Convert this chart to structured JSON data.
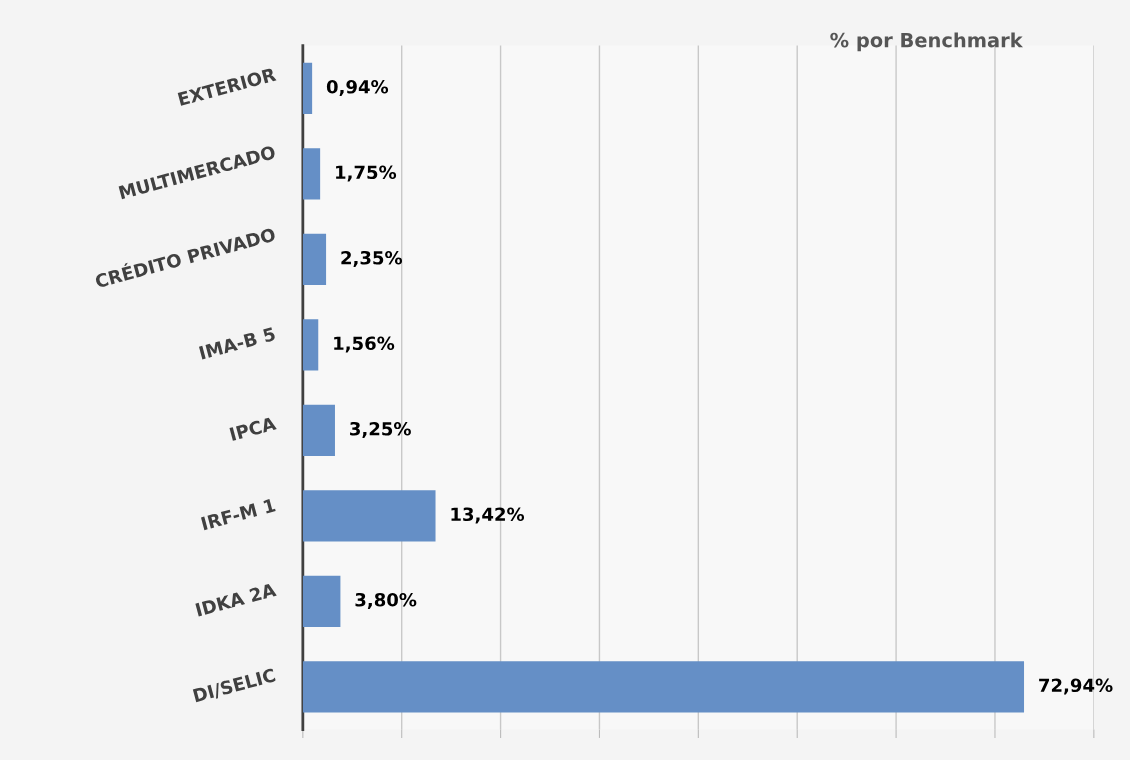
{
  "chart_data": {
    "type": "bar",
    "orientation": "horizontal",
    "title": "% por Benchmark",
    "categories": [
      "EXTERIOR",
      "MULTIMERCADO",
      "CRÉDITO PRIVADO",
      "IMA-B 5",
      "IPCA",
      "IRF-M 1",
      "IDKA 2A",
      "DI/SELIC"
    ],
    "values": [
      0.94,
      1.75,
      2.35,
      1.56,
      3.25,
      13.42,
      3.8,
      72.94
    ],
    "value_labels": [
      "0,94%",
      "1,75%",
      "2,35%",
      "1,56%",
      "3,25%",
      "13,42%",
      "3,80%",
      "72,94%"
    ],
    "color": "#658fc6",
    "xlim": [
      0,
      80
    ],
    "xticks": [
      {
        "value": 0,
        "label": null
      },
      {
        "value": 10,
        "label": null
      },
      {
        "value": 20,
        "label": null
      },
      {
        "value": 30,
        "label": null
      },
      {
        "value": 40,
        "label": null
      },
      {
        "value": 50,
        "label": null
      },
      {
        "value": 60,
        "label": null
      },
      {
        "value": 70,
        "label": null
      },
      {
        "value": 80,
        "label": null
      }
    ],
    "tick_labels": "y",
    "grid": "x",
    "legend": false
  }
}
